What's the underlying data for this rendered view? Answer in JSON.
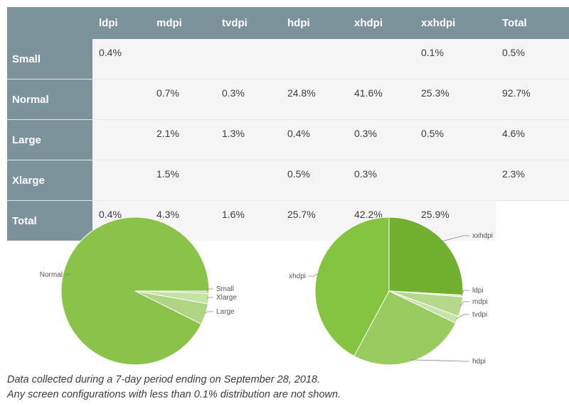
{
  "table": {
    "columns": [
      "ldpi",
      "mdpi",
      "tvdpi",
      "hdpi",
      "xhdpi",
      "xxhdpi",
      "Total"
    ],
    "rows": [
      {
        "label": "Small",
        "cells": [
          "0.4%",
          "",
          "",
          "",
          "",
          "0.1%",
          "0.5%"
        ]
      },
      {
        "label": "Normal",
        "cells": [
          "",
          "0.7%",
          "0.3%",
          "24.8%",
          "41.6%",
          "25.3%",
          "92.7%"
        ]
      },
      {
        "label": "Large",
        "cells": [
          "",
          "2.1%",
          "1.3%",
          "0.4%",
          "0.3%",
          "0.5%",
          "4.6%"
        ]
      },
      {
        "label": "Xlarge",
        "cells": [
          "",
          "1.5%",
          "",
          "0.5%",
          "0.3%",
          "",
          "2.3%"
        ]
      },
      {
        "label": "Total",
        "cells": [
          "0.4%",
          "4.3%",
          "1.6%",
          "25.7%",
          "42.2%",
          "25.9%",
          ""
        ]
      }
    ]
  },
  "chart_data": [
    {
      "type": "pie",
      "categories": [
        "Normal",
        "Small",
        "Xlarge",
        "Large"
      ],
      "values": [
        92.7,
        0.5,
        2.3,
        4.6
      ],
      "colors": [
        "#8bc34a",
        "#b8dc8f",
        "#c5e3a4",
        "#aed581"
      ]
    },
    {
      "type": "pie",
      "categories": [
        "xxhdpi",
        "ldpi",
        "mdpi",
        "tvdpi",
        "hdpi",
        "xhdpi"
      ],
      "values": [
        25.9,
        0.4,
        4.3,
        1.6,
        25.7,
        42.2
      ],
      "colors": [
        "#72ae2f",
        "#d5eabc",
        "#b5d98c",
        "#c8e3a8",
        "#99cc5e",
        "#86c340"
      ]
    }
  ],
  "caption": {
    "line1": "Data collected during a 7-day period ending on September 28, 2018.",
    "line2": "Any screen configurations with less than 0.1% distribution are not shown."
  }
}
